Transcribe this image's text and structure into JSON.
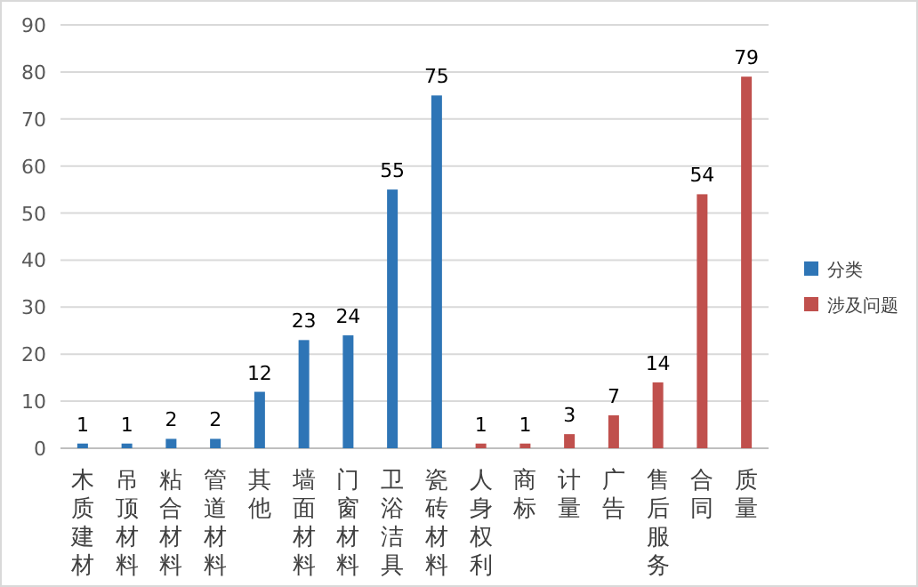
{
  "chart_data": {
    "type": "bar",
    "categories": [
      "木质建材",
      "吊顶材料",
      "粘合材料",
      "管道材料",
      "其他",
      "墙面材料",
      "门窗材料",
      "卫浴洁具",
      "瓷砖材料",
      "人身权利",
      "商标",
      "计量",
      "广告",
      "售后服务",
      "合同",
      "质量"
    ],
    "series": [
      {
        "name": "分类",
        "color": "#2e75b6",
        "values": [
          1,
          1,
          2,
          2,
          12,
          23,
          24,
          55,
          75,
          null,
          null,
          null,
          null,
          null,
          null,
          null
        ]
      },
      {
        "name": "涉及问题",
        "color": "#c0504d",
        "values": [
          null,
          null,
          null,
          null,
          null,
          null,
          null,
          null,
          null,
          1,
          1,
          3,
          7,
          14,
          54,
          79
        ]
      }
    ],
    "ylim": [
      0,
      90
    ],
    "yticks": [
      0,
      10,
      20,
      30,
      40,
      50,
      60,
      70,
      80,
      90
    ],
    "grid": "y",
    "legend": "right",
    "data_labels": true
  }
}
